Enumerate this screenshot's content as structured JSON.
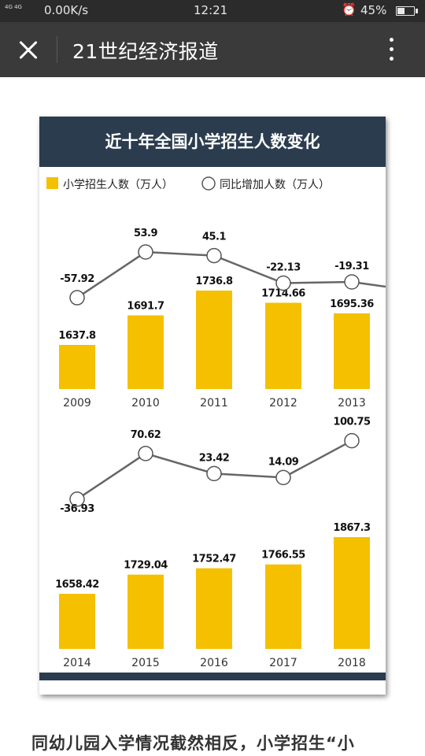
{
  "status_bar": {
    "signal_text": "4G 4G",
    "net_speed": "0.00K/s",
    "time": "12:21",
    "battery": "45%",
    "battery_level": 0.45
  },
  "nav": {
    "title": "21世纪经济报道"
  },
  "chart_data": {
    "type": "bar",
    "title": "近十年全国小学招生人数变化",
    "legend": [
      "小学招生人数（万人）",
      "同比增加人数（万人）"
    ],
    "colors": {
      "bar": "#f5c000",
      "line": "#666666",
      "header": "#2b3c4e"
    },
    "panels": [
      {
        "categories": [
          "2009",
          "2010",
          "2011",
          "2012",
          "2013"
        ],
        "bar_labels": [
          "1637.8",
          "1691.7",
          "1736.8",
          "1714.66",
          "1695.36"
        ],
        "values": [
          1637.8,
          1691.7,
          1736.8,
          1714.66,
          1695.36
        ],
        "line_labels": [
          "-57.92",
          "53.9",
          "45.1",
          "-22.13",
          "-19.31"
        ],
        "line_values": [
          -57.92,
          53.9,
          45.1,
          -22.13,
          -19.31
        ]
      },
      {
        "categories": [
          "2014",
          "2015",
          "2016",
          "2017",
          "2018"
        ],
        "bar_labels": [
          "1658.42",
          "1729.04",
          "1752.47",
          "1766.55",
          "1867.3"
        ],
        "values": [
          1658.42,
          1729.04,
          1752.47,
          1766.55,
          1867.3
        ],
        "line_labels": [
          "-36.93",
          "70.62",
          "23.42",
          "14.09",
          "100.75"
        ],
        "line_values": [
          -36.93,
          70.62,
          23.42,
          14.09,
          100.75
        ]
      }
    ]
  },
  "caption": "同幼儿园入学情况截然相反，小学招生“小"
}
